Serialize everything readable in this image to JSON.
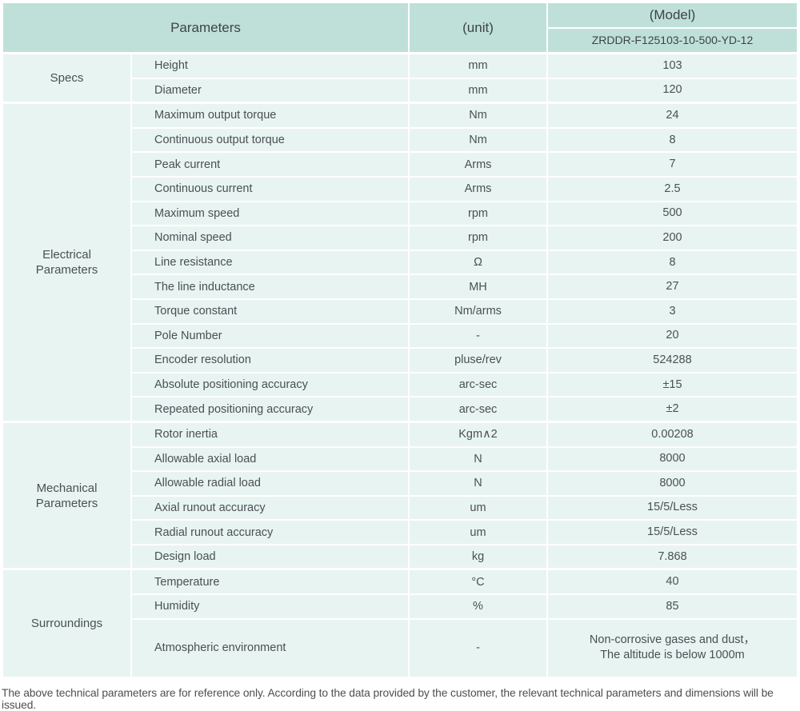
{
  "colors": {
    "header_bg": "#bfe0d8",
    "cell_bg": "#e8f4f1"
  },
  "header": {
    "parameters_label": "Parameters",
    "unit_label": "(unit)",
    "model_label": "(Model)",
    "model_code": "ZRDDR-F125103-10-500-YD-12"
  },
  "groups": [
    {
      "label": "Specs",
      "rows": [
        {
          "name": "Height",
          "unit": "mm",
          "value": "103"
        },
        {
          "name": "Diameter",
          "unit": "mm",
          "value": "120"
        }
      ]
    },
    {
      "label": "Electrical Parameters",
      "rows": [
        {
          "name": "Maximum output torque",
          "unit": "Nm",
          "value": "24"
        },
        {
          "name": "Continuous output torque",
          "unit": "Nm",
          "value": "8"
        },
        {
          "name": "Peak current",
          "unit": "Arms",
          "value": "7"
        },
        {
          "name": "Continuous current",
          "unit": "Arms",
          "value": "2.5"
        },
        {
          "name": "Maximum speed",
          "unit": "rpm",
          "value": "500"
        },
        {
          "name": "Nominal speed",
          "unit": "rpm",
          "value": "200"
        },
        {
          "name": "Line resistance",
          "unit": "Ω",
          "value": "8"
        },
        {
          "name": "The line inductance",
          "unit": "MH",
          "value": "27"
        },
        {
          "name": "Torque constant",
          "unit": "Nm/arms",
          "value": "3"
        },
        {
          "name": "Pole Number",
          "unit": "-",
          "value": "20"
        },
        {
          "name": "Encoder resolution",
          "unit": "pluse/rev",
          "value": "524288"
        },
        {
          "name": "Absolute positioning accuracy",
          "unit": "arc-sec",
          "value": "±15"
        },
        {
          "name": "Repeated positioning accuracy",
          "unit": "arc-sec",
          "value": "±2"
        }
      ]
    },
    {
      "label": "Mechanical Parameters",
      "rows": [
        {
          "name": "Rotor inertia",
          "unit": "Kgm∧2",
          "value": "0.00208"
        },
        {
          "name": "Allowable axial load",
          "unit": "N",
          "value": "8000"
        },
        {
          "name": "Allowable radial load",
          "unit": "N",
          "value": "8000"
        },
        {
          "name": "Axial runout accuracy",
          "unit": "um",
          "value": "15/5/Less"
        },
        {
          "name": "Radial runout accuracy",
          "unit": "um",
          "value": "15/5/Less"
        },
        {
          "name": "Design load",
          "unit": "kg",
          "value": "7.868"
        }
      ]
    },
    {
      "label": "Surroundings",
      "rows": [
        {
          "name": "Temperature",
          "unit": "°C",
          "value": "40"
        },
        {
          "name": "Humidity",
          "unit": "%",
          "value": "85"
        },
        {
          "name": "Atmospheric environment",
          "unit": "-",
          "value": "Non-corrosive gases and dust，\nThe altitude is below 1000m"
        }
      ]
    }
  ],
  "footer": {
    "note": "The above technical parameters are for reference only. According to the data provided by the customer, the relevant technical parameters and dimensions will be issued."
  }
}
